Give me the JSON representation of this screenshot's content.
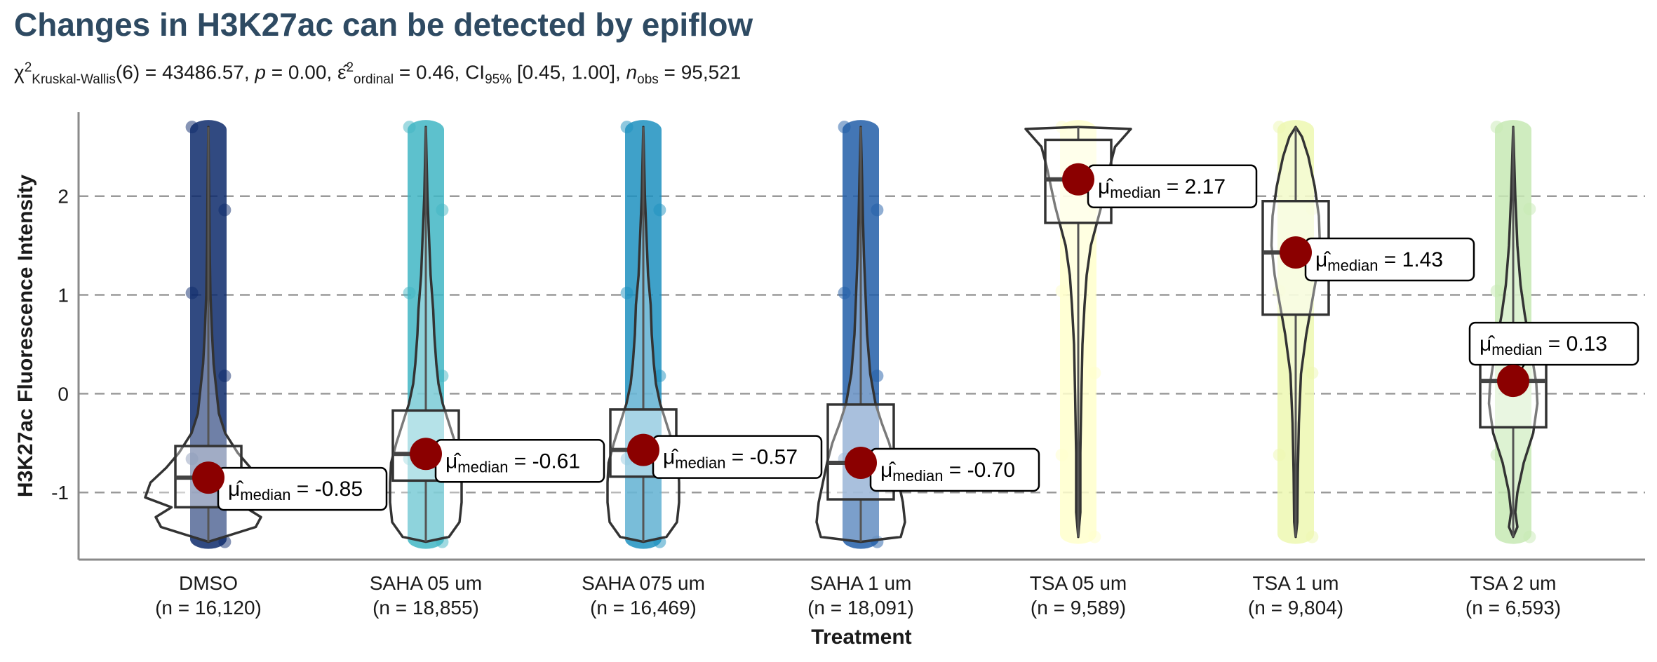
{
  "chart_data": {
    "type": "violin-box",
    "title": "Changes in H3K27ac can be detected by epiflow",
    "subtitle": {
      "statistic": "43486.57",
      "df": "6",
      "p": "0.00",
      "effect": "0.46",
      "ci": "[0.45, 1.00]",
      "n_obs": "95,521",
      "parts": {
        "chi": "χ",
        "chi_sup": "2",
        "chi_sub": "Kruskal-Wallis",
        "p_label": "p",
        "eps": "ε̂",
        "eps_sup": "2",
        "eps_sub": "ordinal",
        "ci_label": "CI",
        "ci_sub": "95%",
        "n_label": "n",
        "n_sub": "obs"
      }
    },
    "xlabel": "Treatment",
    "ylabel": "H3K27ac Fluorescence Intensity",
    "ylim": [
      -1.68,
      2.85
    ],
    "yticks": [
      "-1",
      "0",
      "1",
      "2"
    ],
    "grid": "horizontal dashed",
    "median_label_prefix": "μ̂",
    "median_label_sub": "median",
    "groups": [
      {
        "name": "DMSO",
        "n": "(n = 16,120)",
        "color": "#0d2a6b",
        "median": -0.85,
        "median_label": "-0.85",
        "q1": -1.15,
        "q3": -0.53,
        "whisker_low": -1.5,
        "whisker_high": 2.7,
        "min": -1.5,
        "max": 2.7,
        "density": [
          [
            -1.5,
            0.0
          ],
          [
            -1.45,
            0.15
          ],
          [
            -1.35,
            0.45
          ],
          [
            -1.25,
            0.5
          ],
          [
            -1.15,
            0.35
          ],
          [
            -1.05,
            0.6
          ],
          [
            -0.9,
            0.55
          ],
          [
            -0.75,
            0.4
          ],
          [
            -0.6,
            0.28
          ],
          [
            -0.4,
            0.16
          ],
          [
            -0.2,
            0.1
          ],
          [
            0.0,
            0.08
          ],
          [
            0.3,
            0.05
          ],
          [
            0.6,
            0.035
          ],
          [
            1.0,
            0.02
          ],
          [
            1.5,
            0.012
          ],
          [
            2.0,
            0.008
          ],
          [
            2.7,
            0.0
          ]
        ]
      },
      {
        "name": "SAHA 05 um",
        "n": "(n = 18,855)",
        "color": "#41b6c4",
        "median": -0.61,
        "median_label": "-0.61",
        "q1": -0.88,
        "q3": -0.17,
        "whisker_low": -1.5,
        "whisker_high": 2.7,
        "min": -1.5,
        "max": 2.7,
        "density": [
          [
            -1.5,
            0.0
          ],
          [
            -1.45,
            0.22
          ],
          [
            -1.3,
            0.32
          ],
          [
            -1.1,
            0.34
          ],
          [
            -0.9,
            0.34
          ],
          [
            -0.7,
            0.33
          ],
          [
            -0.5,
            0.28
          ],
          [
            -0.3,
            0.22
          ],
          [
            -0.1,
            0.16
          ],
          [
            0.1,
            0.12
          ],
          [
            0.3,
            0.1
          ],
          [
            0.6,
            0.08
          ],
          [
            0.85,
            0.07
          ],
          [
            1.2,
            0.045
          ],
          [
            1.6,
            0.03
          ],
          [
            2.0,
            0.015
          ],
          [
            2.7,
            0.0
          ]
        ]
      },
      {
        "name": "SAHA 075 um",
        "n": "(n = 16,469)",
        "color": "#1d91c0",
        "median": -0.57,
        "median_label": "-0.57",
        "q1": -0.84,
        "q3": -0.16,
        "whisker_low": -1.5,
        "whisker_high": 2.7,
        "min": -1.5,
        "max": 2.7,
        "density": [
          [
            -1.5,
            0.0
          ],
          [
            -1.45,
            0.22
          ],
          [
            -1.3,
            0.32
          ],
          [
            -1.1,
            0.34
          ],
          [
            -0.9,
            0.34
          ],
          [
            -0.7,
            0.33
          ],
          [
            -0.5,
            0.28
          ],
          [
            -0.3,
            0.22
          ],
          [
            -0.1,
            0.16
          ],
          [
            0.1,
            0.12
          ],
          [
            0.3,
            0.1
          ],
          [
            0.6,
            0.08
          ],
          [
            0.9,
            0.07
          ],
          [
            1.2,
            0.045
          ],
          [
            1.6,
            0.03
          ],
          [
            2.0,
            0.015
          ],
          [
            2.7,
            0.0
          ]
        ]
      },
      {
        "name": "SAHA 1 um",
        "n": "(n = 18,091)",
        "color": "#225ea8",
        "median": -0.7,
        "median_label": "-0.70",
        "q1": -1.07,
        "q3": -0.11,
        "whisker_low": -1.5,
        "whisker_high": 2.7,
        "min": -1.5,
        "max": 2.7,
        "density": [
          [
            -1.5,
            0.0
          ],
          [
            -1.45,
            0.38
          ],
          [
            -1.3,
            0.42
          ],
          [
            -1.1,
            0.4
          ],
          [
            -0.9,
            0.36
          ],
          [
            -0.7,
            0.32
          ],
          [
            -0.5,
            0.27
          ],
          [
            -0.3,
            0.2
          ],
          [
            -0.1,
            0.14
          ],
          [
            0.2,
            0.09
          ],
          [
            0.6,
            0.06
          ],
          [
            1.0,
            0.045
          ],
          [
            1.4,
            0.03
          ],
          [
            1.8,
            0.02
          ],
          [
            2.2,
            0.012
          ],
          [
            2.7,
            0.0
          ]
        ]
      },
      {
        "name": "TSA 05 um",
        "n": "(n = 9,589)",
        "color": "#ffffcc",
        "median": 2.17,
        "median_label": "2.17",
        "q1": 1.73,
        "q3": 2.57,
        "whisker_low": -1.45,
        "whisker_high": 2.7,
        "min": -1.45,
        "max": 2.7,
        "density": [
          [
            -1.45,
            0.0
          ],
          [
            -1.2,
            0.02
          ],
          [
            -0.6,
            0.02
          ],
          [
            0.0,
            0.03
          ],
          [
            0.5,
            0.04
          ],
          [
            0.9,
            0.06
          ],
          [
            1.2,
            0.08
          ],
          [
            1.5,
            0.12
          ],
          [
            1.7,
            0.17
          ],
          [
            1.9,
            0.22
          ],
          [
            2.1,
            0.26
          ],
          [
            2.3,
            0.3
          ],
          [
            2.5,
            0.35
          ],
          [
            2.62,
            0.45
          ],
          [
            2.68,
            0.5
          ],
          [
            2.7,
            0.0
          ]
        ]
      },
      {
        "name": "TSA 1 um",
        "n": "(n = 9,804)",
        "color": "#edf8b1",
        "median": 1.43,
        "median_label": "1.43",
        "q1": 0.8,
        "q3": 1.95,
        "whisker_low": -1.45,
        "whisker_high": 2.7,
        "min": -1.45,
        "max": 2.7,
        "density": [
          [
            -1.45,
            0.0
          ],
          [
            -1.3,
            0.015
          ],
          [
            -0.8,
            0.02
          ],
          [
            -0.3,
            0.03
          ],
          [
            0.2,
            0.05
          ],
          [
            0.6,
            0.1
          ],
          [
            0.9,
            0.15
          ],
          [
            1.2,
            0.2
          ],
          [
            1.5,
            0.23
          ],
          [
            1.8,
            0.22
          ],
          [
            2.1,
            0.18
          ],
          [
            2.4,
            0.12
          ],
          [
            2.6,
            0.06
          ],
          [
            2.7,
            0.0
          ]
        ]
      },
      {
        "name": "TSA 2 um",
        "n": "(n = 6,593)",
        "color": "#c7e9b4",
        "median": 0.13,
        "median_label": "0.13",
        "q1": -0.34,
        "q3": 0.68,
        "whisker_low": -1.45,
        "whisker_high": 2.7,
        "min": -1.45,
        "max": 2.7,
        "density": [
          [
            -1.45,
            0.0
          ],
          [
            -1.35,
            0.04
          ],
          [
            -1.2,
            0.02
          ],
          [
            -1.0,
            0.04
          ],
          [
            -0.7,
            0.1
          ],
          [
            -0.4,
            0.19
          ],
          [
            -0.1,
            0.23
          ],
          [
            0.1,
            0.22
          ],
          [
            0.3,
            0.19
          ],
          [
            0.5,
            0.16
          ],
          [
            0.8,
            0.11
          ],
          [
            1.1,
            0.07
          ],
          [
            1.5,
            0.04
          ],
          [
            2.0,
            0.02
          ],
          [
            2.7,
            0.0
          ]
        ]
      }
    ]
  }
}
